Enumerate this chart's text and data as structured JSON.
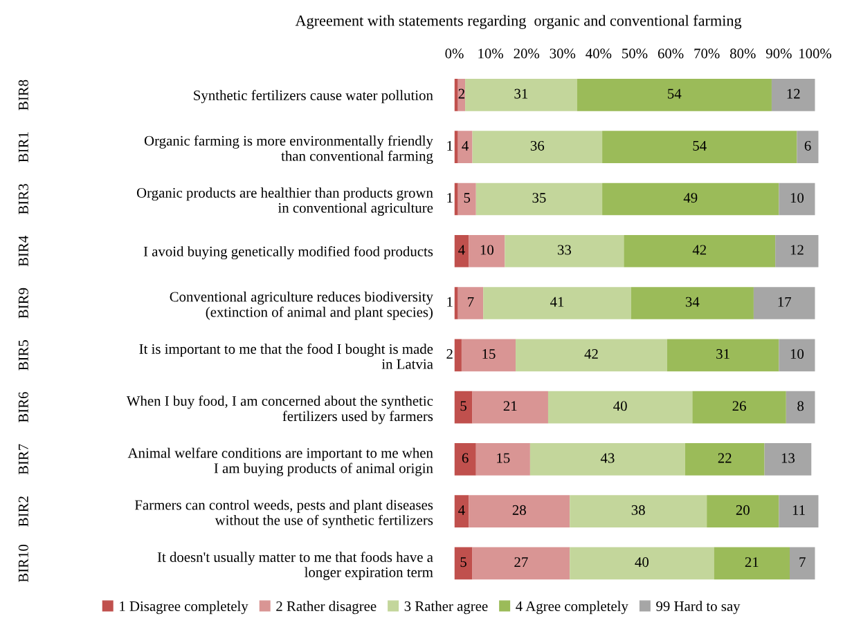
{
  "chart_data": {
    "type": "bar",
    "orientation": "horizontal",
    "stacked": true,
    "title": "Agreement with statements regarding  organic and conventional farming",
    "categories": [
      "Synthetic fertilizers cause water pollution",
      "Organic farming is more environmentally friendly\nthan conventional farming",
      "Organic products are healthier than products grown\nin conventional agriculture",
      "I avoid buying genetically modified food products",
      "Conventional agriculture reduces biodiversity\n(extinction of animal and plant species)",
      "It is important to me that the food I bought is made\nin Latvia",
      "When I buy food, I am concerned about the synthetic\nfertilizers used by farmers",
      "Animal welfare conditions are important to me when\nI am buying products of animal origin",
      "Farmers can control weeds, pests and plant diseases\nwithout the use of synthetic fertilizers",
      "It doesn't usually matter to me that foods have a\nlonger expiration term"
    ],
    "annotations": [
      "BIR8",
      "BIR1",
      "BIR3",
      "BIR4",
      "BIR9",
      "BIR5",
      "BIR6",
      "BIR7",
      "BIR2",
      "BIR10"
    ],
    "series": [
      {
        "name": "1 Disagree completely",
        "color": "#c0504d",
        "values": [
          1,
          1,
          1,
          4,
          1,
          2,
          5,
          6,
          4,
          5
        ],
        "value_labels": [
          null,
          "1",
          "1",
          "4",
          "1",
          "2",
          "5",
          "6",
          "4",
          "5"
        ]
      },
      {
        "name": "2 Rather disagree",
        "color": "#d99594",
        "values": [
          2,
          4,
          5,
          10,
          7,
          15,
          21,
          15,
          28,
          27
        ],
        "value_labels": [
          "2",
          "4",
          "5",
          "10",
          "7",
          "15",
          "21",
          "15",
          "28",
          "27"
        ]
      },
      {
        "name": "3 Rather agree",
        "color": "#c3d69b",
        "values": [
          31,
          36,
          35,
          33,
          41,
          42,
          40,
          43,
          38,
          40
        ],
        "value_labels": [
          "31",
          "36",
          "35",
          "33",
          "41",
          "42",
          "40",
          "43",
          "38",
          "40"
        ]
      },
      {
        "name": "4 Agree completely",
        "color": "#9bbb59",
        "values": [
          54,
          54,
          49,
          42,
          34,
          31,
          26,
          22,
          20,
          21
        ],
        "value_labels": [
          "54",
          "54",
          "49",
          "42",
          "34",
          "31",
          "26",
          "22",
          "20",
          "21"
        ]
      },
      {
        "name": "99 Hard to say",
        "color": "#a6a6a6",
        "values": [
          12,
          6,
          10,
          12,
          17,
          10,
          8,
          13,
          11,
          7
        ],
        "value_labels": [
          "12",
          "6",
          "10",
          "12",
          "17",
          "10",
          "8",
          "13",
          "11",
          "7"
        ]
      }
    ],
    "xlim": [
      0,
      101
    ],
    "xticks": [
      {
        "value": 0,
        "label": "0%"
      },
      {
        "value": 10,
        "label": "10%"
      },
      {
        "value": 20,
        "label": "20%"
      },
      {
        "value": 30,
        "label": "30%"
      },
      {
        "value": 40,
        "label": "40%"
      },
      {
        "value": 50,
        "label": "50%"
      },
      {
        "value": 60,
        "label": "60%"
      },
      {
        "value": 70,
        "label": "70%"
      },
      {
        "value": 80,
        "label": "80%"
      },
      {
        "value": 90,
        "label": "90%"
      },
      {
        "value": 100,
        "label": "100%"
      }
    ],
    "legend": "bottom",
    "grid": false
  }
}
